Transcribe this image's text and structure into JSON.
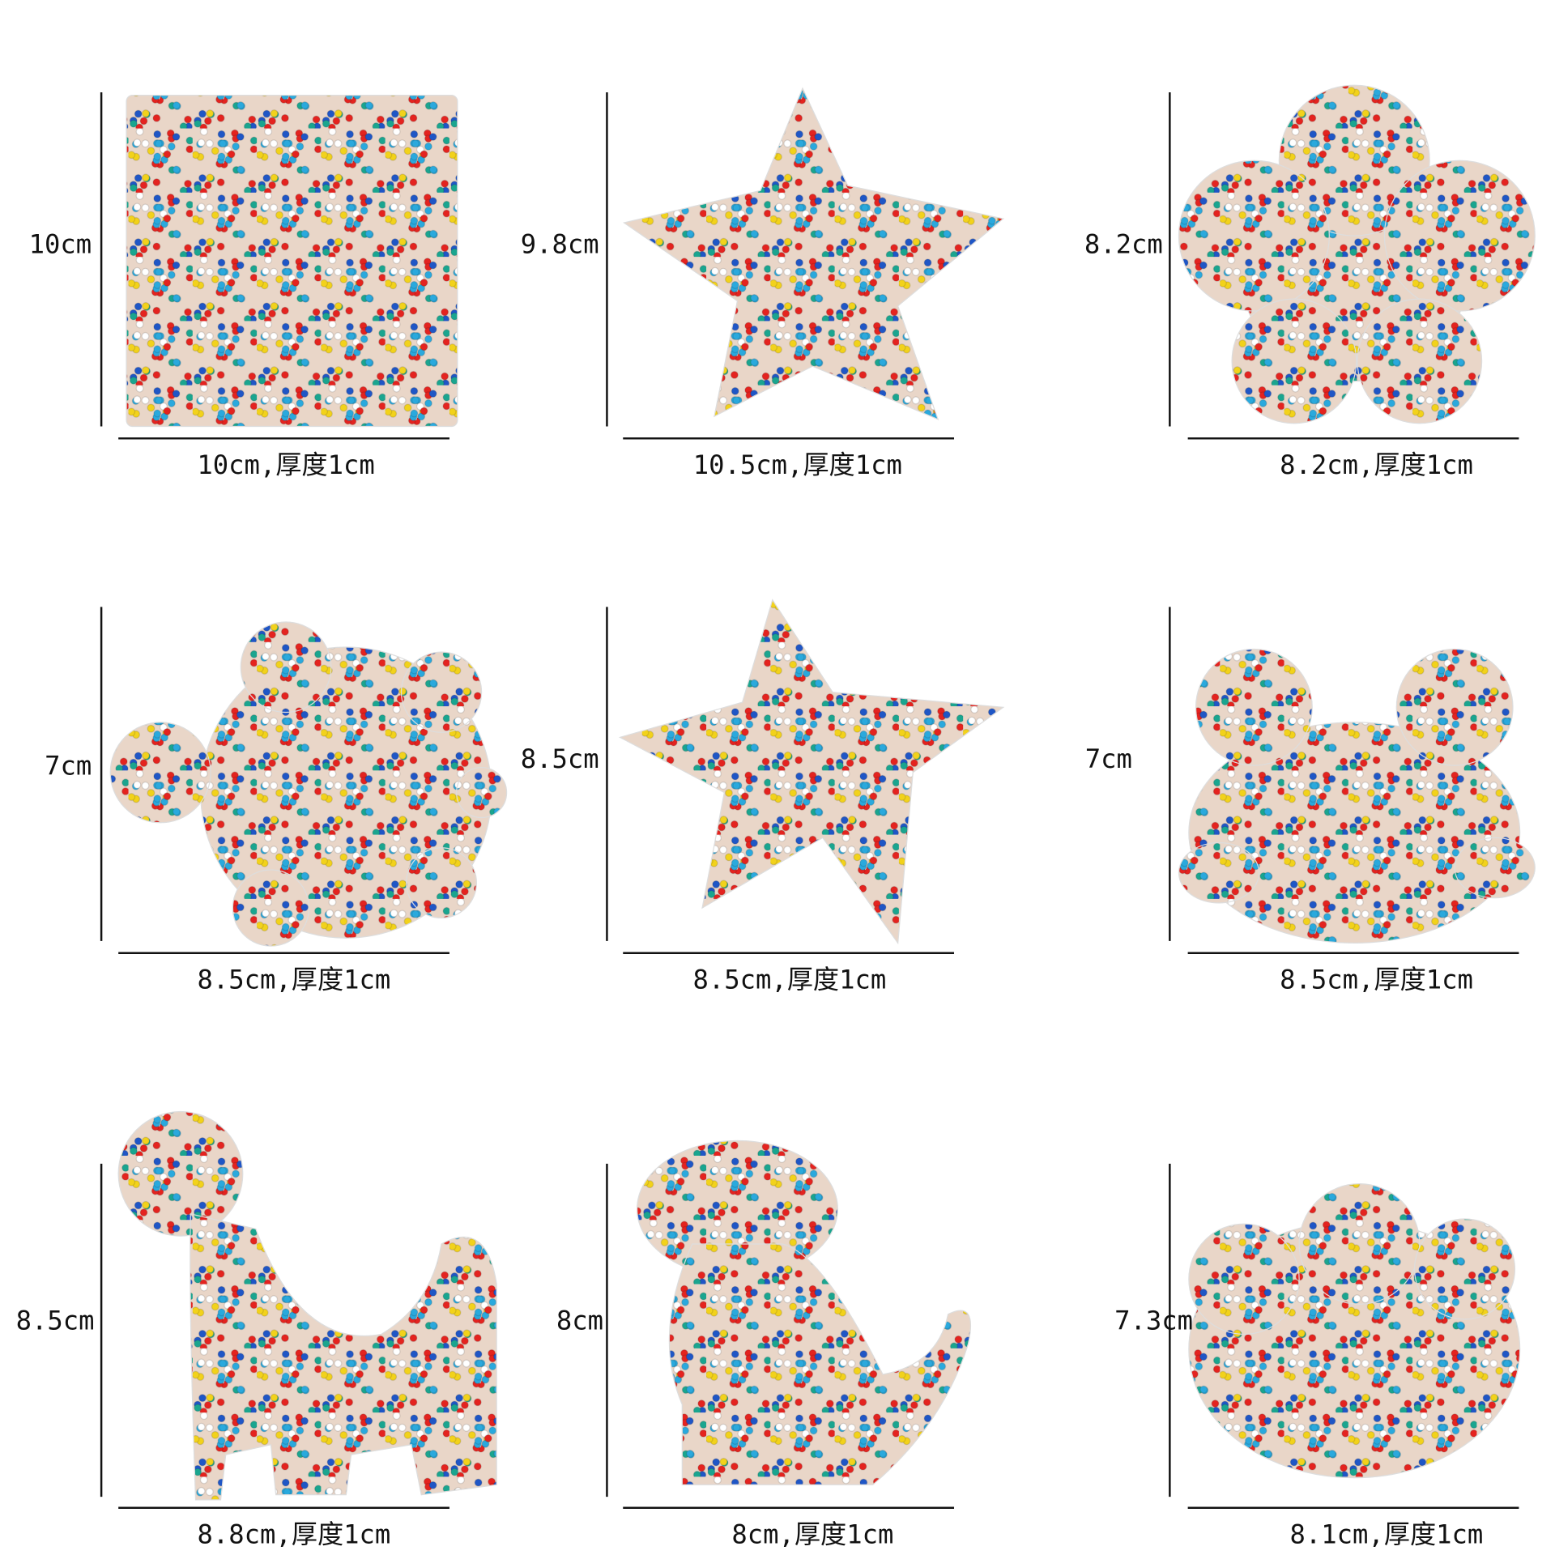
{
  "items": [
    {
      "height": "10cm",
      "width": "10cm,厚度1cm"
    },
    {
      "height": "9.8cm",
      "width": "10.5cm,厚度1cm"
    },
    {
      "height": "8.2cm",
      "width": "8.2cm,厚度1cm"
    },
    {
      "height": "7cm",
      "width": "8.5cm,厚度1cm"
    },
    {
      "height": "8.5cm",
      "width": "8.5cm,厚度1cm"
    },
    {
      "height": "7cm",
      "width": "8.5cm,厚度1cm"
    },
    {
      "height": "8.5cm",
      "width": "8.8cm,厚度1cm"
    },
    {
      "height": "8cm",
      "width": "8cm,厚度1cm"
    },
    {
      "height": "7.3cm",
      "width": "8.1cm,厚度1cm"
    }
  ]
}
